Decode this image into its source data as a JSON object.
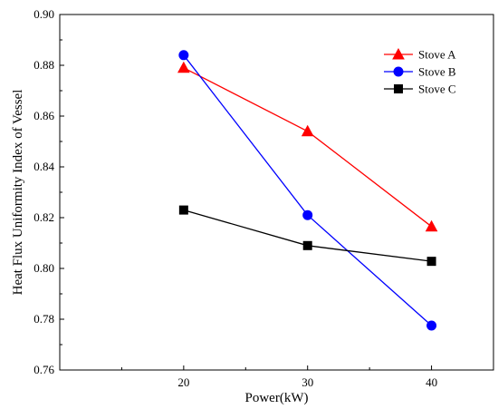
{
  "chart_data": {
    "type": "line",
    "title": "",
    "xlabel": "Power(kW)",
    "ylabel": "Heat Flux Uniformity Index of Vessel",
    "x": [
      20,
      30,
      40
    ],
    "xlim": [
      10,
      45
    ],
    "ylim": [
      0.76,
      0.9
    ],
    "xticks": [
      "20",
      "30",
      "40"
    ],
    "yticks": [
      "0.76",
      "0.78",
      "0.80",
      "0.82",
      "0.84",
      "0.86",
      "0.88",
      "0.90"
    ],
    "grid": false,
    "legend_position": "top-right",
    "series": [
      {
        "name": "Stove A",
        "values": [
          0.879,
          0.854,
          0.8165
        ],
        "color": "#ff0000",
        "marker": "triangle"
      },
      {
        "name": "Stove B",
        "values": [
          0.884,
          0.821,
          0.7775
        ],
        "color": "#0000ff",
        "marker": "circle"
      },
      {
        "name": "Stove C",
        "values": [
          0.823,
          0.809,
          0.8028
        ],
        "color": "#000000",
        "marker": "square"
      }
    ]
  }
}
